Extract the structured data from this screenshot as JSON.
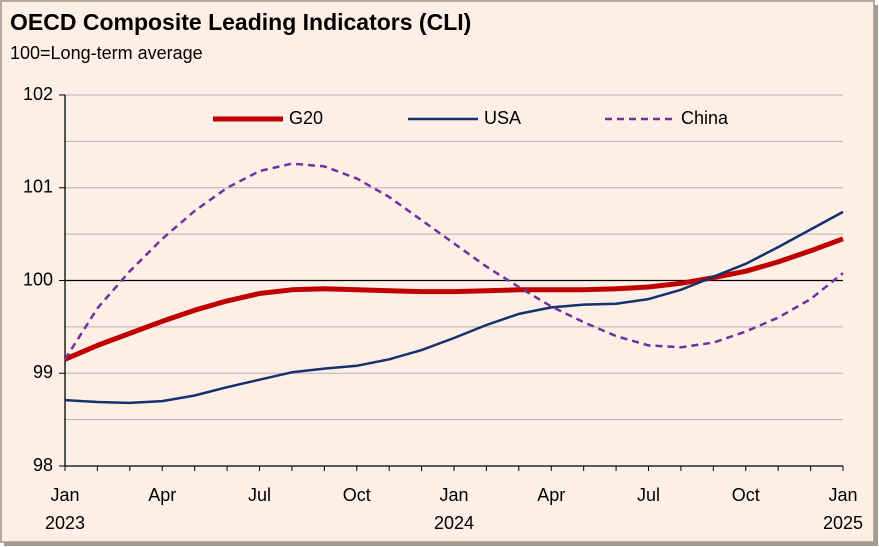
{
  "chart_data": {
    "type": "line",
    "title": "OECD Composite Leading Indicators (CLI)",
    "subtitle": "100=Long-term average",
    "categories": [
      "Jan",
      null,
      null,
      "Apr",
      null,
      null,
      "Jul",
      null,
      null,
      "Oct",
      null,
      null,
      "Jan",
      null,
      null,
      "Apr",
      null,
      null,
      "Jul",
      null,
      null,
      "Oct",
      null,
      null,
      "Jan"
    ],
    "category_years": [
      "2023",
      null,
      null,
      null,
      null,
      null,
      null,
      null,
      null,
      null,
      null,
      null,
      "2024",
      null,
      null,
      null,
      null,
      null,
      null,
      null,
      null,
      null,
      null,
      null,
      "2025"
    ],
    "series": [
      {
        "name": "G20",
        "color": "#c00000",
        "width": 5,
        "dashed": false,
        "values": [
          99.15,
          99.3,
          99.43,
          99.56,
          99.68,
          99.78,
          99.86,
          99.9,
          99.91,
          99.9,
          99.89,
          99.88,
          99.88,
          99.89,
          99.9,
          99.9,
          99.9,
          99.91,
          99.93,
          99.97,
          100.03,
          100.1,
          100.2,
          100.32,
          100.45
        ]
      },
      {
        "name": "USA",
        "color": "#14306e",
        "width": 2.5,
        "dashed": false,
        "values": [
          98.71,
          98.69,
          98.68,
          98.7,
          98.76,
          98.85,
          98.93,
          99.01,
          99.05,
          99.08,
          99.15,
          99.25,
          99.38,
          99.52,
          99.64,
          99.71,
          99.74,
          99.75,
          99.8,
          99.9,
          100.04,
          100.18,
          100.36,
          100.55,
          100.74
        ]
      },
      {
        "name": "China",
        "color": "#7030a0",
        "width": 2.5,
        "dashed": true,
        "values": [
          99.15,
          99.7,
          100.1,
          100.45,
          100.75,
          101.0,
          101.18,
          101.26,
          101.23,
          101.1,
          100.9,
          100.65,
          100.4,
          100.15,
          99.93,
          99.72,
          99.55,
          99.4,
          99.3,
          99.28,
          99.33,
          99.45,
          99.6,
          99.8,
          100.08
        ]
      }
    ],
    "ylim": [
      98,
      102
    ],
    "yticks": [
      98,
      99,
      100,
      101,
      102
    ],
    "minor_grid": [
      98.5,
      99.5,
      100.5,
      101.5
    ],
    "reference_line": 100,
    "grid": true,
    "legend": "top"
  }
}
